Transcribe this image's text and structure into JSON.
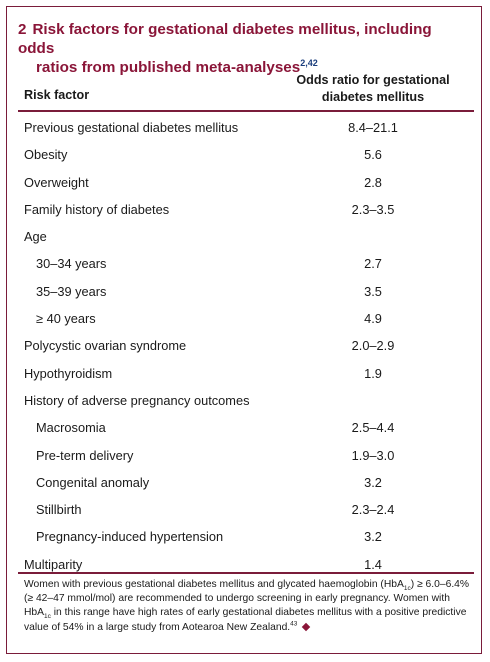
{
  "table": {
    "number": "2",
    "title_line1": "Risk factors for gestational diabetes mellitus, including odds",
    "title_line2": "ratios from published meta-analyses",
    "title_refs": "2,42",
    "col_factor": "Risk factor",
    "col_odds_line1": "Odds ratio for gestational",
    "col_odds_line2": "diabetes mellitus",
    "rows": [
      {
        "factor": "Previous gestational diabetes mellitus",
        "odds": "8.4–21.1",
        "indent": false
      },
      {
        "factor": "Obesity",
        "odds": "5.6",
        "indent": false
      },
      {
        "factor": "Overweight",
        "odds": "2.8",
        "indent": false
      },
      {
        "factor": "Family history of diabetes",
        "odds": "2.3–3.5",
        "indent": false
      },
      {
        "factor": "Age",
        "odds": "",
        "indent": false
      },
      {
        "factor": "30–34 years",
        "odds": "2.7",
        "indent": true
      },
      {
        "factor": "35–39 years",
        "odds": "3.5",
        "indent": true
      },
      {
        "factor": "≥ 40 years",
        "odds": "4.9",
        "indent": true
      },
      {
        "factor": "Polycystic ovarian syndrome",
        "odds": "2.0–2.9",
        "indent": false
      },
      {
        "factor": "Hypothyroidism",
        "odds": "1.9",
        "indent": false
      },
      {
        "factor": "History of adverse pregnancy outcomes",
        "odds": "",
        "indent": false
      },
      {
        "factor": "Macrosomia",
        "odds": "2.5–4.4",
        "indent": true
      },
      {
        "factor": "Pre-term delivery",
        "odds": "1.9–3.0",
        "indent": true
      },
      {
        "factor": "Congenital anomaly",
        "odds": "3.2",
        "indent": true
      },
      {
        "factor": "Stillbirth",
        "odds": "2.3–2.4",
        "indent": true
      },
      {
        "factor": "Pregnancy-induced hypertension",
        "odds": "3.2",
        "indent": true
      },
      {
        "factor": "Multiparity",
        "odds": "1.4",
        "indent": false
      }
    ],
    "footnote": {
      "p1": "Women with previous gestational diabetes mellitus and glycated haemoglobin (HbA",
      "sub1": "1c",
      "p2": ") ≥ 6.0–6.4% (≥ 42–47 mmol/mol) are recommended to undergo screening in early pregnancy. Women with HbA",
      "sub2": "1c",
      "p3": " in this range have high rates of early gestational diabetes mellitus with a positive predictive value of 54% in a large study from Aotearoa New Zealand.",
      "ref": "43"
    }
  }
}
